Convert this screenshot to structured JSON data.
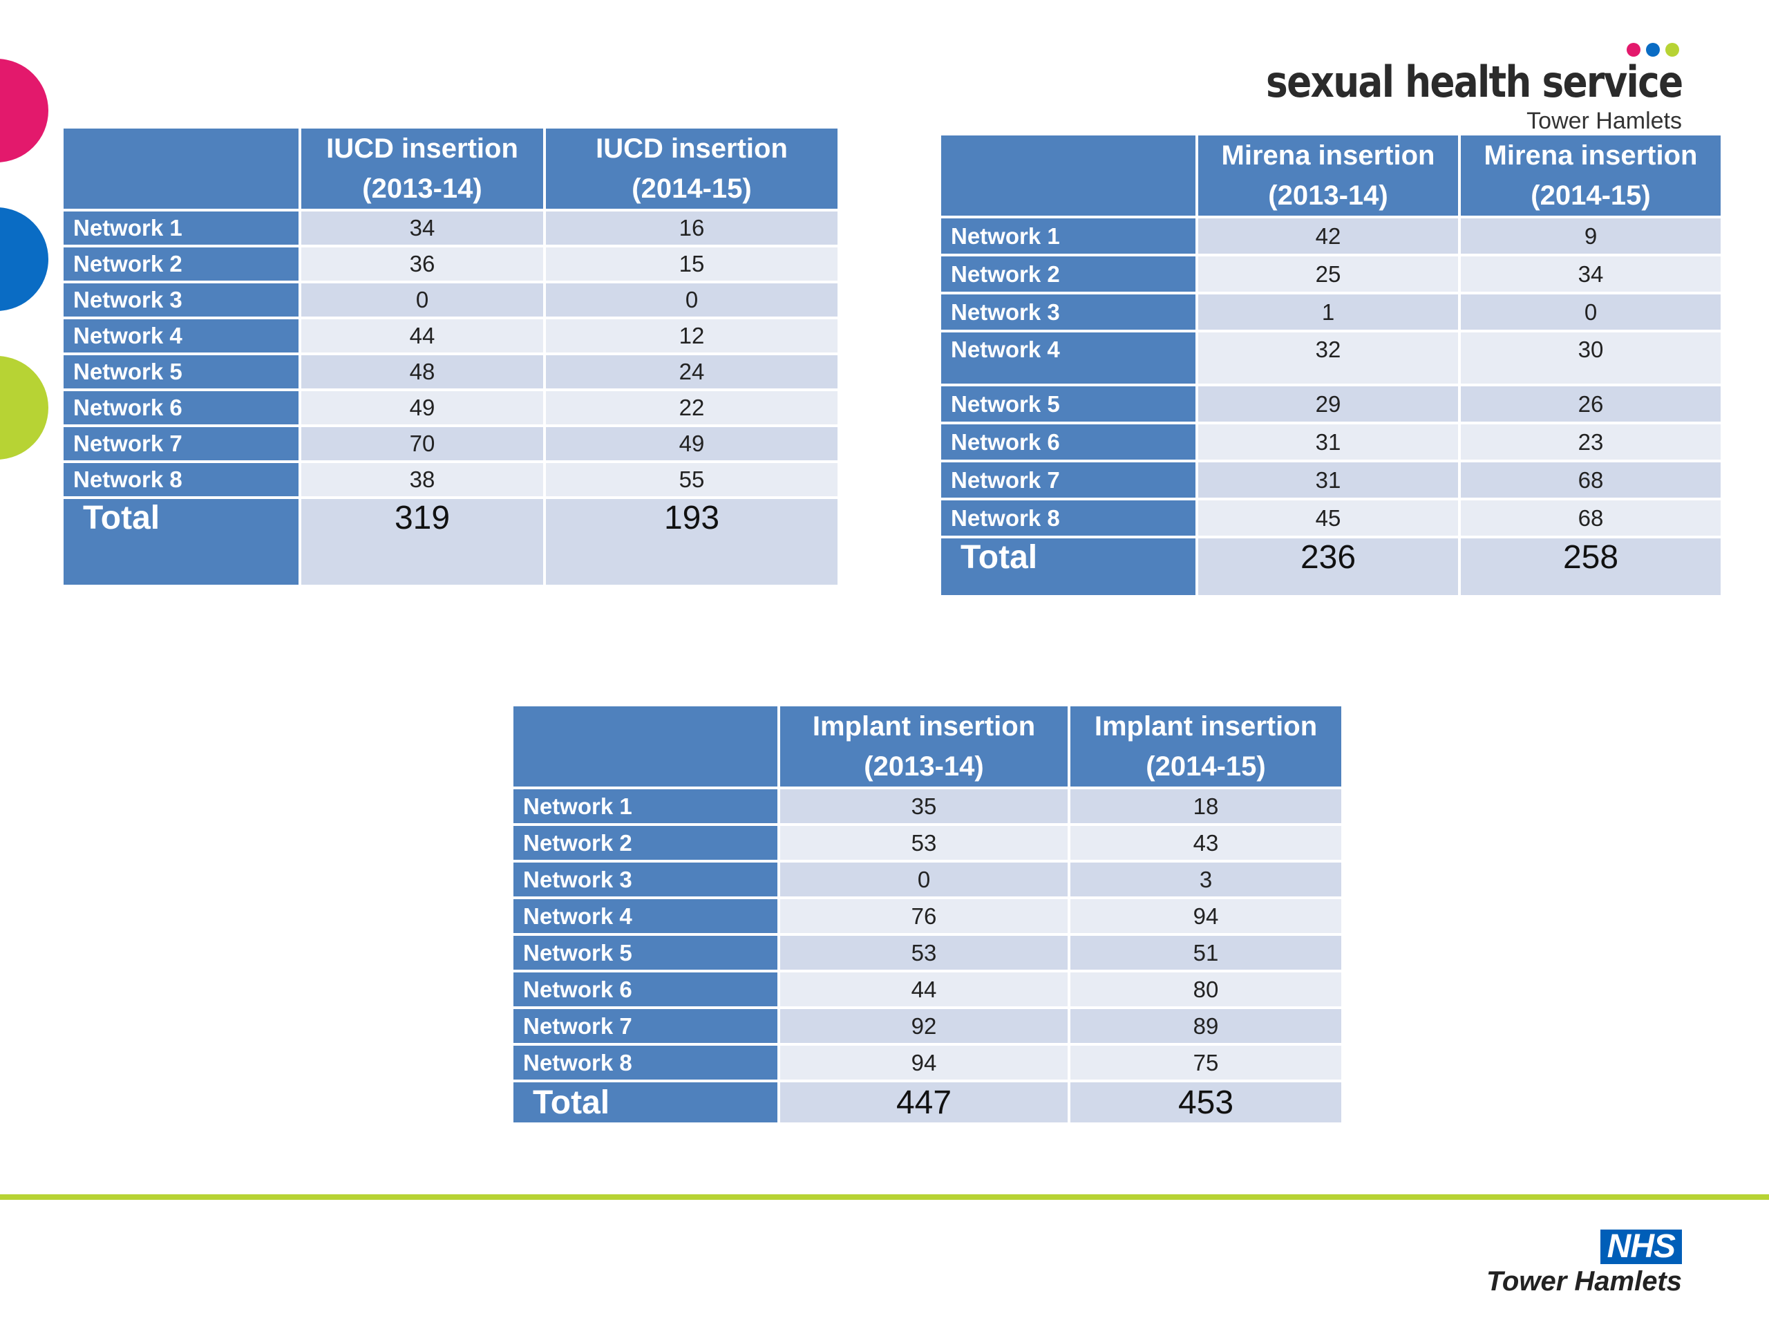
{
  "brand": {
    "title": "sexual health service",
    "subtitle": "Tower Hamlets",
    "dot_colors": [
      "#e3196c",
      "#0a6cc4",
      "#b7d334"
    ]
  },
  "tables": {
    "iucd": {
      "col1": [
        "IUCD insertion",
        "(2013-14)"
      ],
      "col2": [
        "IUCD insertion",
        "(2014-15)"
      ],
      "rows": [
        {
          "label": "Network 1",
          "v1": "34",
          "v2": "16"
        },
        {
          "label": "Network 2",
          "v1": "36",
          "v2": "15"
        },
        {
          "label": "Network 3",
          "v1": "0",
          "v2": "0"
        },
        {
          "label": "Network 4",
          "v1": "44",
          "v2": "12"
        },
        {
          "label": "Network 5",
          "v1": "48",
          "v2": "24"
        },
        {
          "label": "Network 6",
          "v1": "49",
          "v2": "22"
        },
        {
          "label": "Network 7",
          "v1": "70",
          "v2": "49"
        },
        {
          "label": "Network 8",
          "v1": "38",
          "v2": "55"
        }
      ],
      "total": {
        "label": "Total",
        "v1": "319",
        "v2": "193"
      }
    },
    "mirena": {
      "col1": [
        "Mirena insertion",
        "(2013-14)"
      ],
      "col2": [
        "Mirena insertion",
        "(2014-15)"
      ],
      "rows": [
        {
          "label": "Network 1",
          "v1": "42",
          "v2": "9"
        },
        {
          "label": "Network 2",
          "v1": "25",
          "v2": "34"
        },
        {
          "label": "Network 3",
          "v1": "1",
          "v2": "0"
        },
        {
          "label": "Network 4",
          "v1": "32",
          "v2": "30"
        },
        {
          "label": "Network 5",
          "v1": "29",
          "v2": "26"
        },
        {
          "label": "Network 6",
          "v1": "31",
          "v2": "23"
        },
        {
          "label": "Network 7",
          "v1": "31",
          "v2": "68"
        },
        {
          "label": "Network 8",
          "v1": "45",
          "v2": "68"
        }
      ],
      "total": {
        "label": "Total",
        "v1": "236",
        "v2": "258"
      }
    },
    "implant": {
      "col1": [
        "Implant insertion",
        "(2013-14)"
      ],
      "col2": [
        "Implant insertion",
        "(2014-15)"
      ],
      "rows": [
        {
          "label": "Network 1",
          "v1": "35",
          "v2": "18"
        },
        {
          "label": "Network 2",
          "v1": "53",
          "v2": "43"
        },
        {
          "label": "Network 3",
          "v1": "0",
          "v2": "3"
        },
        {
          "label": "Network 4",
          "v1": "76",
          "v2": "94"
        },
        {
          "label": "Network 5",
          "v1": "53",
          "v2": "51"
        },
        {
          "label": "Network 6",
          "v1": "44",
          "v2": "80"
        },
        {
          "label": "Network 7",
          "v1": "92",
          "v2": "89"
        },
        {
          "label": "Network 8",
          "v1": "94",
          "v2": "75"
        }
      ],
      "total": {
        "label": "Total",
        "v1": "447",
        "v2": "453"
      }
    }
  },
  "footer": {
    "nhs_logo": "NHS",
    "nhs_subtitle": "Tower Hamlets"
  }
}
